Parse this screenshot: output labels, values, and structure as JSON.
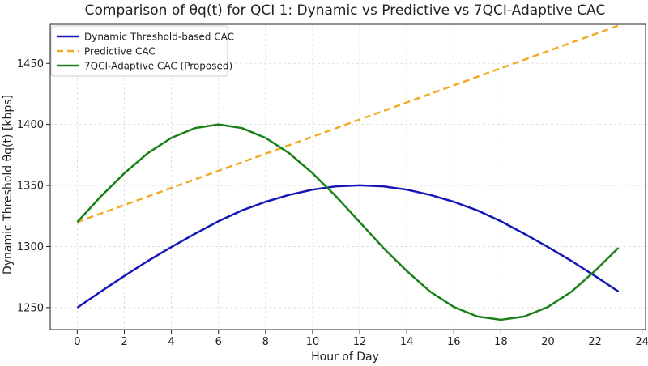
{
  "chart_data": {
    "type": "line",
    "title": "Comparison of θq(t) for QCI 1: Dynamic vs Predictive vs 7QCI-Adaptive CAC",
    "xlabel": "Hour of Day",
    "ylabel": "Dynamic Threshold θq(t) [kbps]",
    "xlim": [
      -1.15,
      24.15
    ],
    "ylim": [
      1232,
      1482
    ],
    "xticks": [
      0,
      2,
      4,
      6,
      8,
      10,
      12,
      14,
      16,
      18,
      20,
      22,
      24
    ],
    "yticks": [
      1250,
      1300,
      1350,
      1400,
      1450
    ],
    "grid": true,
    "legend": "top-left",
    "x": [
      0,
      1,
      2,
      3,
      4,
      5,
      6,
      7,
      8,
      9,
      10,
      11,
      12,
      13,
      14,
      15,
      16,
      17,
      18,
      19,
      20,
      21,
      22,
      23
    ],
    "series": [
      {
        "name": "Dynamic Threshold-based CAC",
        "color": "#1515b8",
        "dash": "solid",
        "values": [
          1250,
          1263.1,
          1275.9,
          1288.2,
          1299.6,
          1310.4,
          1320.7,
          1329.6,
          1336.6,
          1342.3,
          1346.6,
          1349.3,
          1350.1,
          1349.3,
          1346.6,
          1342.3,
          1336.6,
          1329.6,
          1320.7,
          1310.4,
          1299.6,
          1288.2,
          1275.9,
          1263.1
        ]
      },
      {
        "name": "Predictive CAC",
        "color": "#f0ab24",
        "dash": "dashed",
        "values": [
          1320,
          1327,
          1334,
          1341,
          1348,
          1355,
          1362,
          1369,
          1376,
          1383,
          1390,
          1397,
          1404,
          1411,
          1418,
          1425,
          1432,
          1439,
          1446,
          1453,
          1460,
          1467,
          1474,
          1481
        ]
      },
      {
        "name": "7QCI-Adaptive CAC (Proposed)",
        "color": "#178017",
        "dash": "solid",
        "values": [
          1320,
          1341,
          1360,
          1376.5,
          1389,
          1397,
          1400,
          1397,
          1389,
          1376.5,
          1360,
          1341,
          1320,
          1299,
          1280,
          1263,
          1250.5,
          1242.7,
          1240,
          1242.7,
          1250.5,
          1263,
          1280,
          1299
        ]
      }
    ]
  }
}
